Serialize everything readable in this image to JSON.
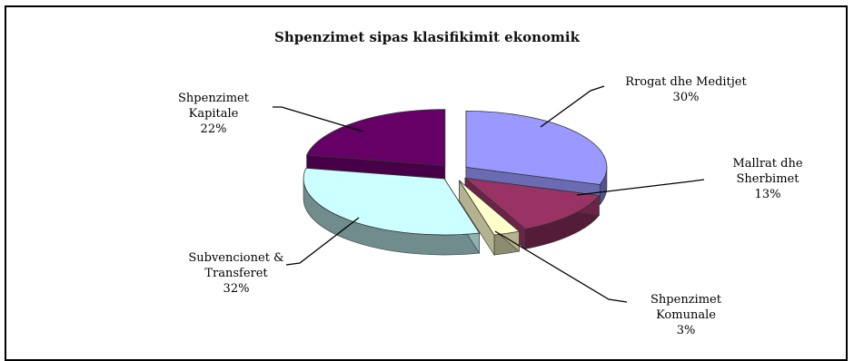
{
  "chart_data": {
    "type": "pie",
    "title": "Shpenzimet sipas klasifikimit ekonomik",
    "slices": [
      {
        "label_lines": [
          "Rrogat dhe Meditjet"
        ],
        "label": "Rrogat dhe Meditjet",
        "pct_label": "30%",
        "value": 30,
        "color": "#9999ff"
      },
      {
        "label_lines": [
          "Mallrat dhe",
          "Sherbimet"
        ],
        "label": "Mallrat dhe Sherbimet",
        "pct_label": "13%",
        "value": 13,
        "color": "#993366"
      },
      {
        "label_lines": [
          "Shpenzimet",
          "Komunale"
        ],
        "label": "Shpenzimet Komunale",
        "pct_label": "3%",
        "value": 3,
        "color": "#ffffcc"
      },
      {
        "label_lines": [
          "Subvencionet &",
          "Transferet"
        ],
        "label": "Subvencionet & Transferet",
        "pct_label": "32%",
        "value": 32,
        "color": "#ccffff"
      },
      {
        "label_lines": [
          "Shpenzimet",
          "Kapitale"
        ],
        "label": "Shpenzimet Kapitale",
        "pct_label": "22%",
        "value": 22,
        "color": "#660066"
      }
    ]
  }
}
